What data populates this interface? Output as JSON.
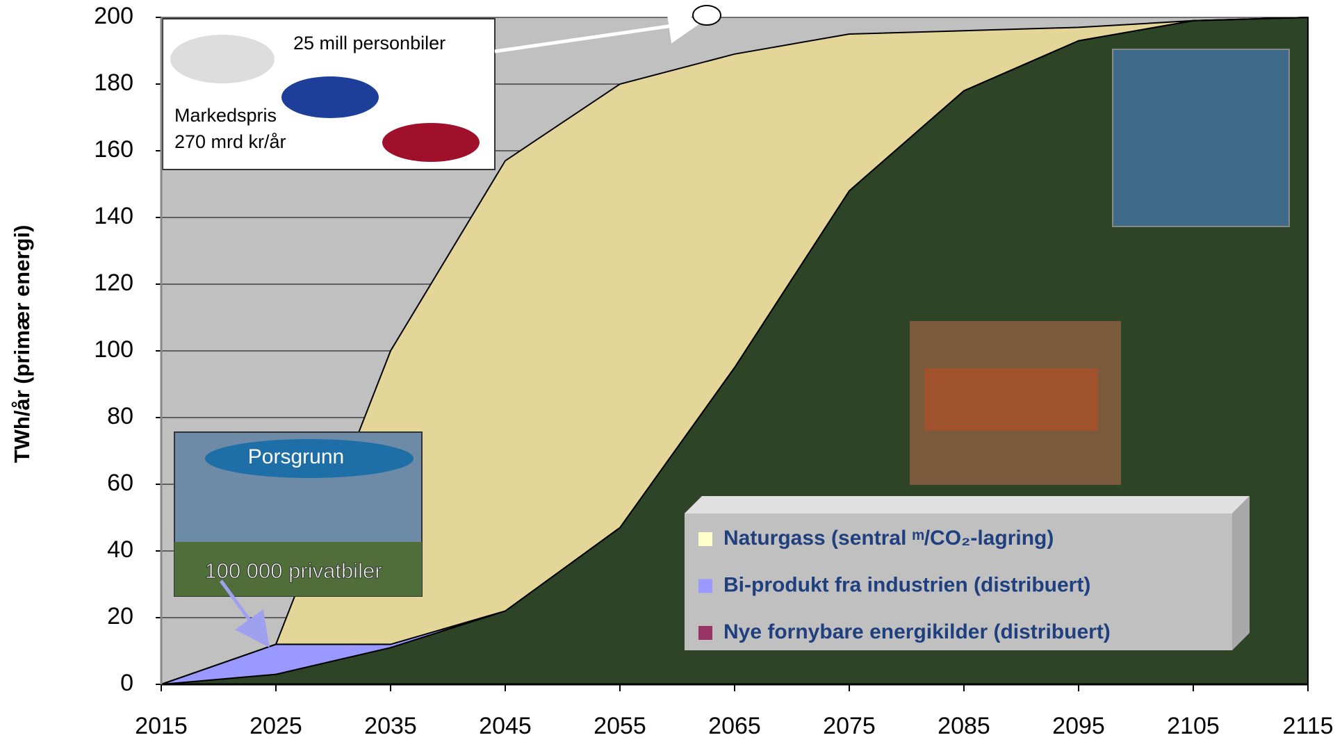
{
  "chart_data": {
    "type": "stacked_area",
    "y_label": "TWh/år (primær energi)",
    "x": [
      2015,
      2025,
      2035,
      2045,
      2055,
      2065,
      2075,
      2085,
      2095,
      2105,
      2115
    ],
    "xlim": [
      2015,
      2115
    ],
    "xticks": [
      2015,
      2025,
      2035,
      2045,
      2055,
      2065,
      2075,
      2085,
      2095,
      2105,
      2115
    ],
    "ylim": [
      0,
      200
    ],
    "yticks": [
      0,
      20,
      40,
      60,
      80,
      100,
      120,
      140,
      160,
      180,
      200
    ],
    "grid": true,
    "series": [
      {
        "name": "Naturgass (sentral ᵐ/CO₂-lagring)",
        "color": "#ffffcc",
        "fill": "#e4d699",
        "values": [
          0,
          0,
          88,
          135,
          133,
          94,
          47,
          18,
          4,
          0,
          0
        ]
      },
      {
        "name": "Bi-produkt fra industrien (distribuert)",
        "color": "#9999ff",
        "fill": "#9999ff",
        "values": [
          0,
          9,
          1,
          0,
          0,
          0,
          0,
          0,
          0,
          0,
          0
        ]
      },
      {
        "name": "Nye fornybare energikilder (distribuert)",
        "color": "#993366",
        "fill": "#2e4426",
        "values": [
          0,
          3,
          11,
          22,
          47,
          95,
          148,
          178,
          193,
          199,
          200
        ]
      }
    ],
    "annotations": [
      "25 mill personbiler",
      "Markedspris",
      "270 mrd kr/år",
      "Porsgrunn",
      "100 000 privatbiler"
    ]
  }
}
